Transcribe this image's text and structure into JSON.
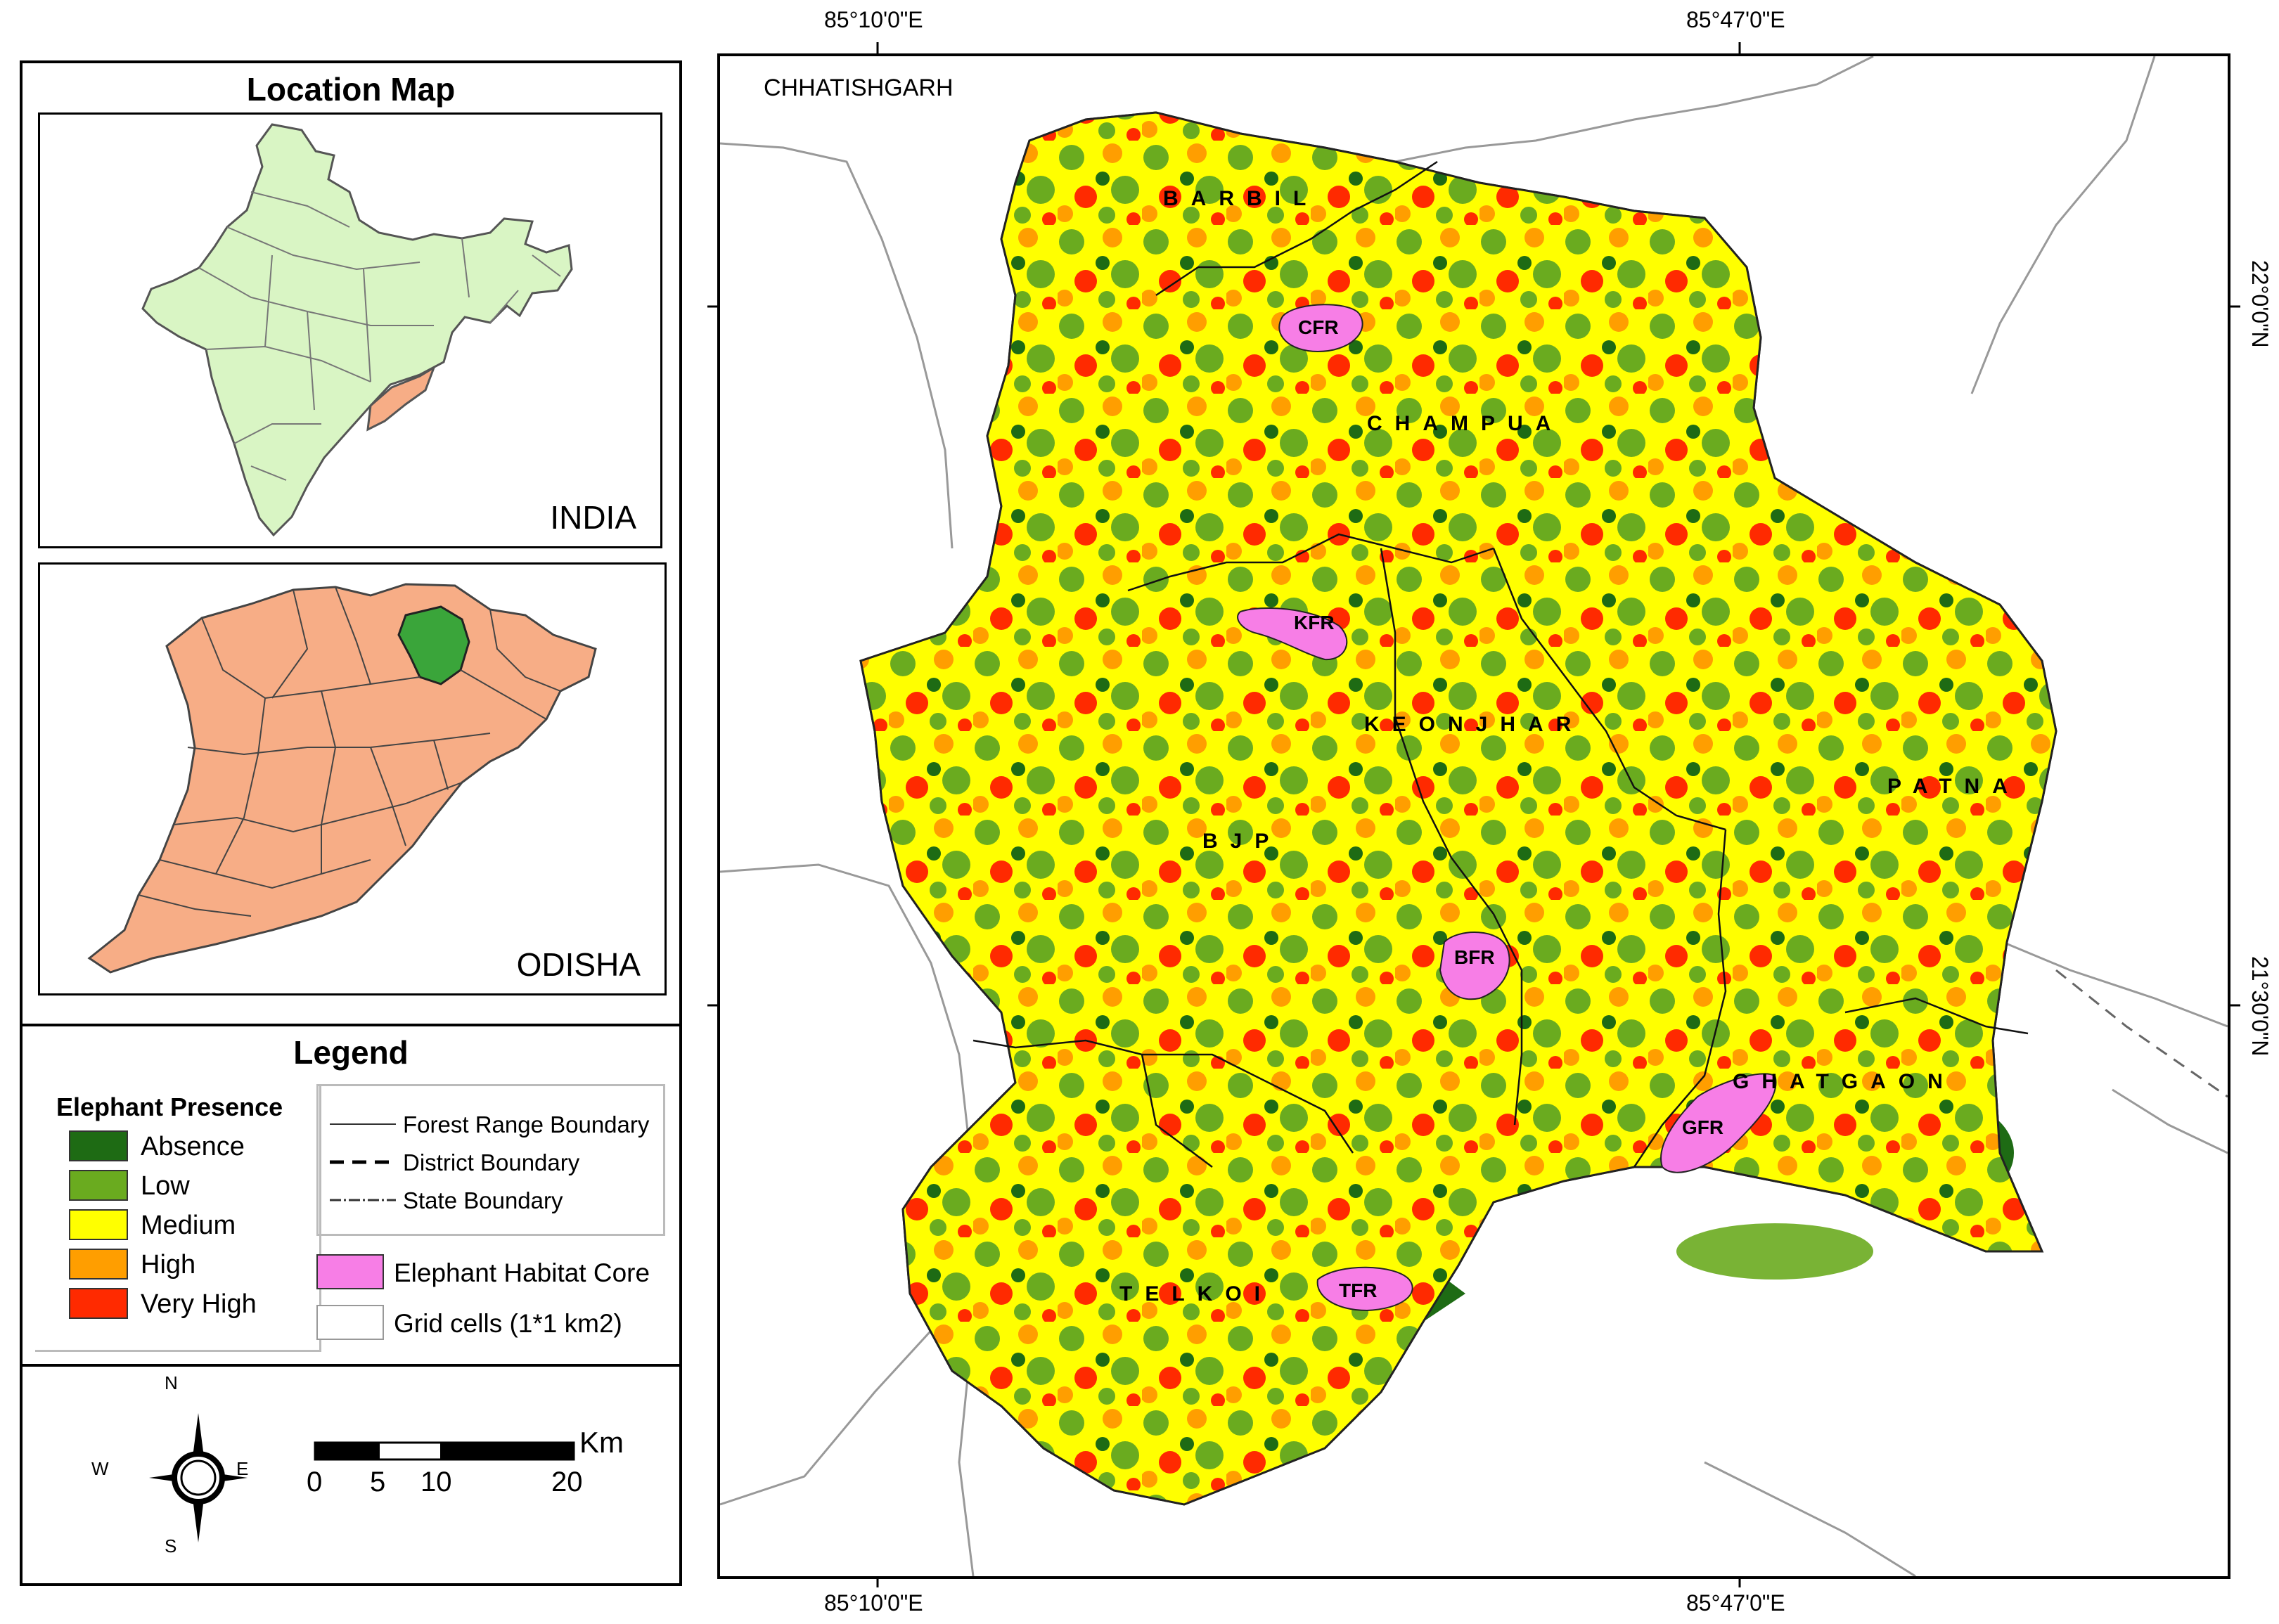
{
  "coords": {
    "top_left": "85°10'0\"E",
    "top_right": "85°47'0\"E",
    "bottom_left": "85°10'0\"E",
    "bottom_right": "85°47'0\"E",
    "right_top": "22°0'0\"N",
    "right_bottom": "21°30'0\"N"
  },
  "location_map": {
    "title": "Location Map",
    "india_label": "INDIA",
    "odisha_label": "ODISHA"
  },
  "legend": {
    "title": "Legend",
    "presence_title": "Elephant Presence",
    "classes": [
      {
        "label": "Absence",
        "color": "#1e6b14"
      },
      {
        "label": "Low",
        "color": "#6aab1f"
      },
      {
        "label": "Medium",
        "color": "#ffff00"
      },
      {
        "label": "High",
        "color": "#ff9e00"
      },
      {
        "label": "Very High",
        "color": "#ff2a00"
      }
    ],
    "lines": [
      {
        "label": "Forest Range Boundary"
      },
      {
        "label": "District Boundary"
      },
      {
        "label": "State Boundary"
      }
    ],
    "core_label": "Elephant Habitat Core",
    "core_color": "#f77ee6",
    "grid_label": "Grid cells (1*1 km2)"
  },
  "scale": {
    "unit": "Km",
    "ticks": [
      "0",
      "5",
      "10",
      "20"
    ],
    "north": "N",
    "south": "S",
    "east": "E",
    "west": "W"
  },
  "map": {
    "neighbor_label": "CHHATISHGARH",
    "ranges": [
      {
        "label": "BARBIL"
      },
      {
        "label": "CHAMPUA"
      },
      {
        "label": "KEONJHAR"
      },
      {
        "label": "PATNA"
      },
      {
        "label": "BJP"
      },
      {
        "label": "GHATGAON"
      },
      {
        "label": "TELKOI"
      }
    ],
    "cores": [
      {
        "label": "CFR"
      },
      {
        "label": "KFR"
      },
      {
        "label": "BFR"
      },
      {
        "label": "GFR"
      },
      {
        "label": "TFR"
      }
    ]
  }
}
